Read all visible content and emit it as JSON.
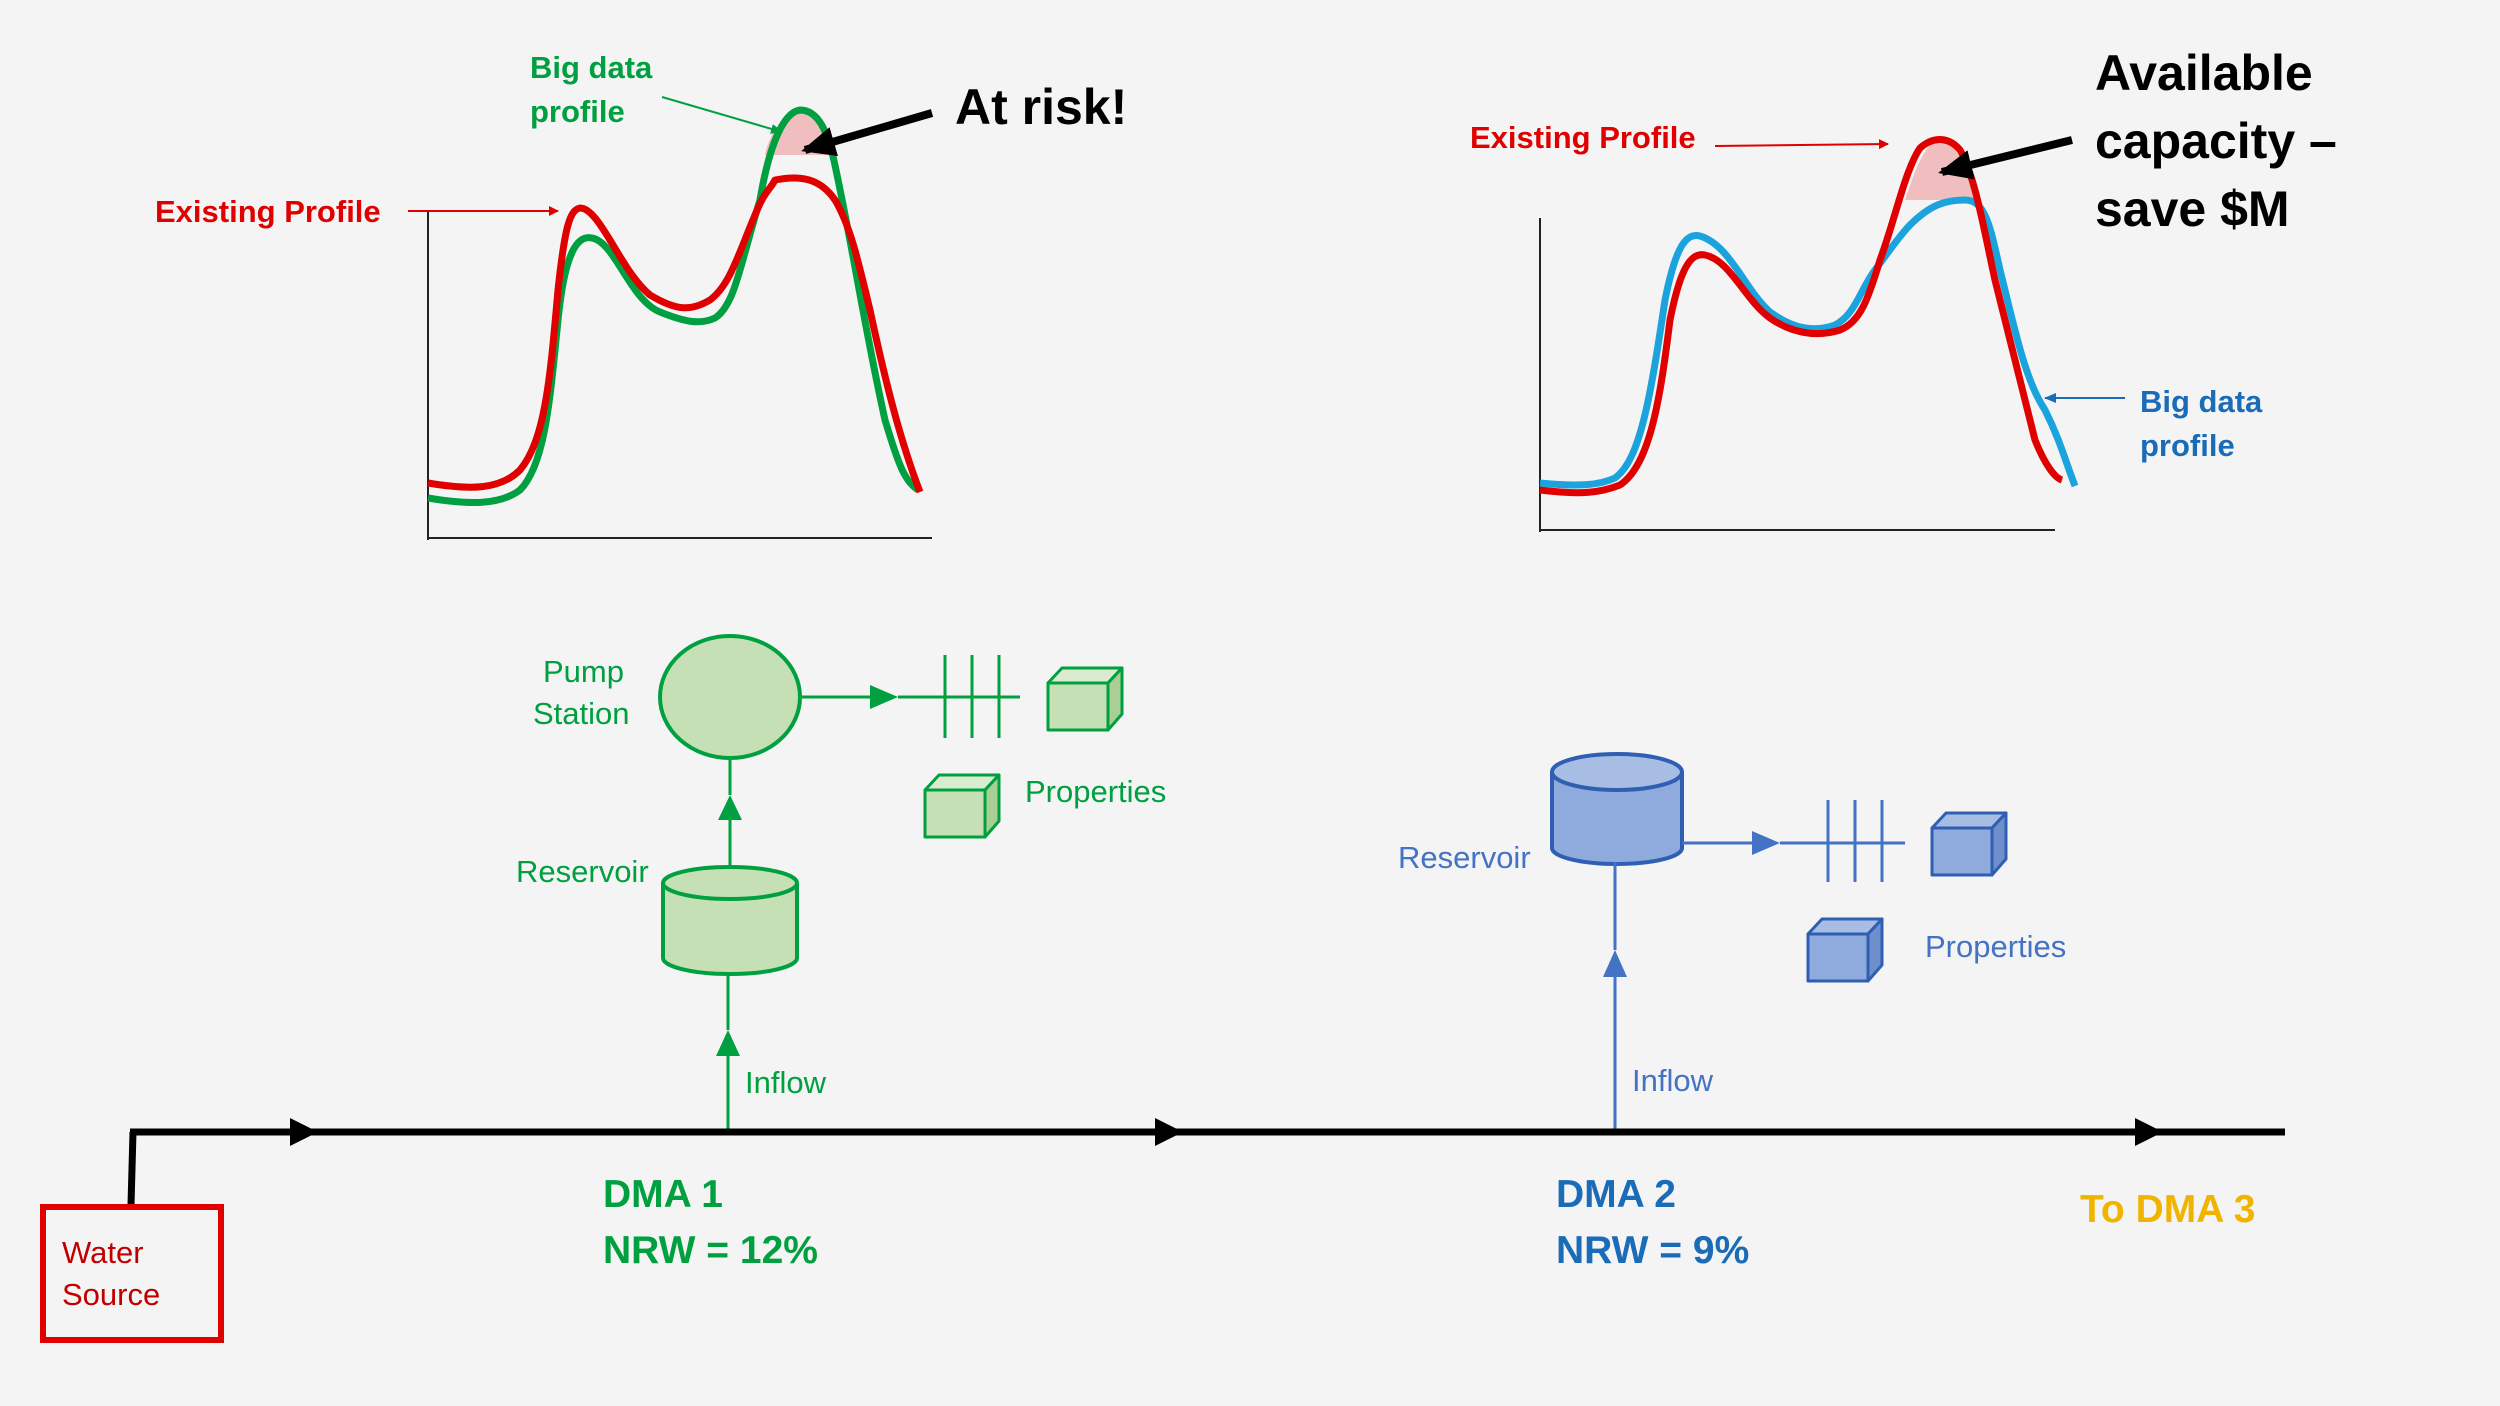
{
  "colors": {
    "red": "#e00000",
    "green": "#00a040",
    "blue_line": "#1aa3dc",
    "dark_blue": "#1a6bb8",
    "slate_blue": "#4472c4",
    "yellow": "#f0b400",
    "black": "#000000",
    "green_fill": "#c5e0b4",
    "blue_fill": "#8faadc",
    "risk_fill": "#f0b8b8"
  },
  "charts": {
    "left": {
      "existing_label": "Existing Profile",
      "bigdata_label_line1": "Big data",
      "bigdata_label_line2": "profile",
      "callout": "At risk!"
    },
    "right": {
      "existing_label": "Existing Profile",
      "bigdata_label_line1": "Big data",
      "bigdata_label_line2": "profile",
      "callout_line1": "Available",
      "callout_line2": "capacity –",
      "callout_line3": "save $M"
    }
  },
  "network": {
    "water_source_line1": "Water",
    "water_source_line2": "Source",
    "to_dma3": "To DMA 3"
  },
  "dma1": {
    "title": "DMA 1",
    "nrw": "NRW = 12%",
    "pump_line1": "Pump",
    "pump_line2": "Station",
    "reservoir": "Reservoir",
    "properties": "Properties",
    "inflow": "Inflow"
  },
  "dma2": {
    "title": "DMA 2",
    "nrw": "NRW = 9%",
    "reservoir": "Reservoir",
    "properties": "Properties",
    "inflow": "Inflow"
  }
}
